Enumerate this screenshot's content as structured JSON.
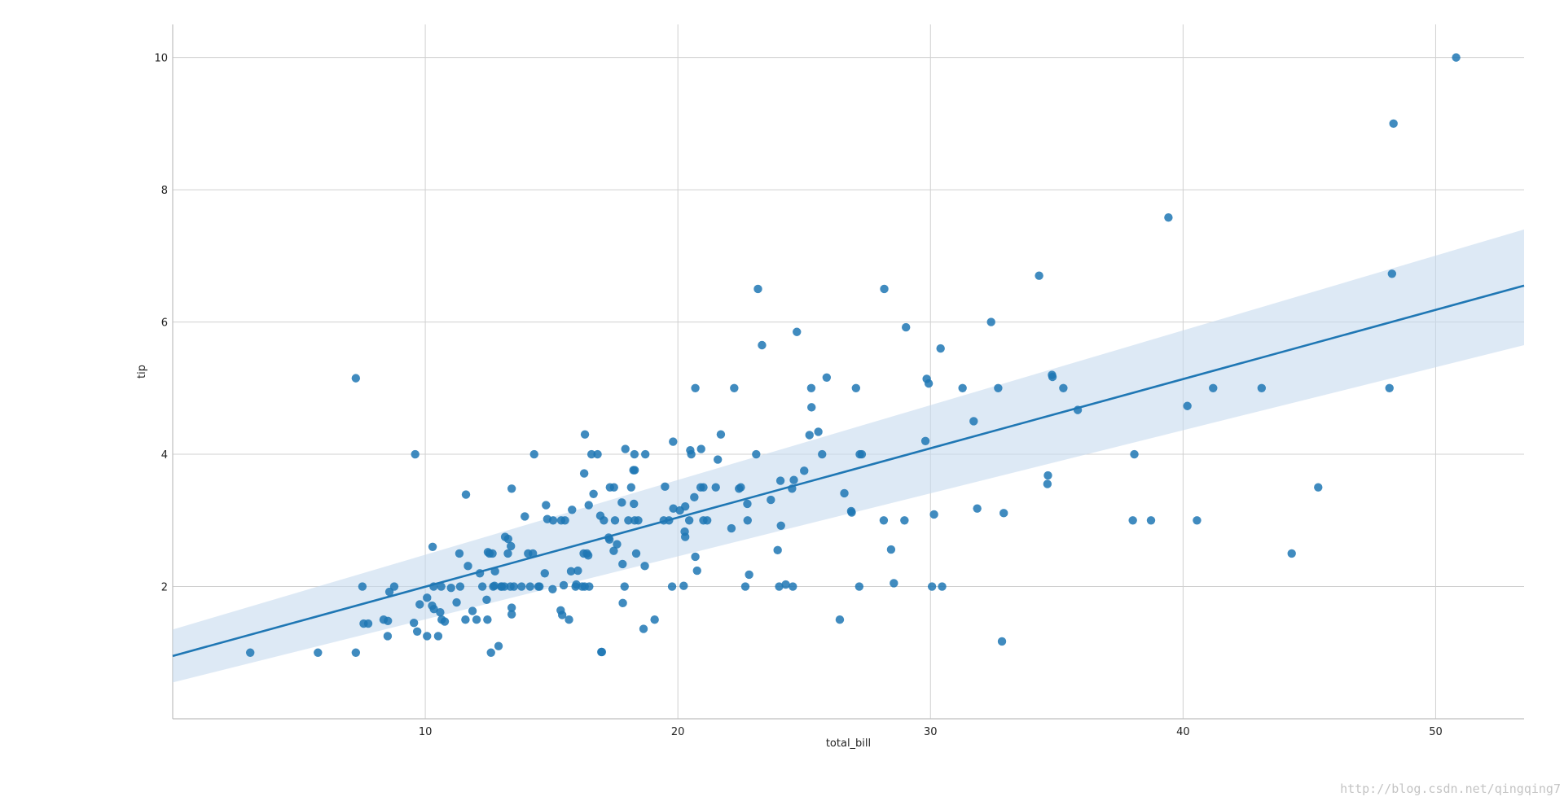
{
  "chart_data": {
    "type": "scatter",
    "xlabel": "total_bill",
    "ylabel": "tip",
    "xlim": [
      0,
      53.5
    ],
    "ylim": [
      0,
      10.5
    ],
    "xticks": [
      10,
      20,
      30,
      40,
      50
    ],
    "yticks": [
      2,
      4,
      6,
      8,
      10
    ],
    "grid": true,
    "colors": {
      "points": "#1f77b4",
      "line": "#1f77b4",
      "ci_band": "#c6dbef",
      "grid": "#d0d0d0",
      "spine": "#bfbfbf"
    },
    "regression": {
      "x": [
        0,
        53.5
      ],
      "y": [
        0.95,
        6.55
      ],
      "ci_lower": [
        0.55,
        5.65
      ],
      "ci_upper": [
        1.35,
        7.4
      ]
    },
    "points": [
      [
        3.07,
        1.0
      ],
      [
        5.75,
        1.0
      ],
      [
        7.25,
        1.0
      ],
      [
        7.25,
        5.15
      ],
      [
        7.51,
        2.0
      ],
      [
        7.56,
        1.44
      ],
      [
        7.74,
        1.44
      ],
      [
        8.35,
        1.5
      ],
      [
        8.52,
        1.48
      ],
      [
        8.51,
        1.25
      ],
      [
        8.58,
        1.92
      ],
      [
        8.77,
        2.0
      ],
      [
        9.55,
        1.45
      ],
      [
        9.6,
        4.0
      ],
      [
        9.68,
        1.32
      ],
      [
        9.78,
        1.73
      ],
      [
        10.07,
        1.83
      ],
      [
        10.07,
        1.25
      ],
      [
        10.27,
        1.71
      ],
      [
        10.29,
        2.6
      ],
      [
        10.33,
        2.0
      ],
      [
        10.34,
        1.66
      ],
      [
        10.51,
        1.25
      ],
      [
        10.59,
        1.61
      ],
      [
        10.63,
        2.0
      ],
      [
        10.65,
        1.5
      ],
      [
        10.77,
        1.47
      ],
      [
        11.02,
        1.98
      ],
      [
        11.24,
        1.76
      ],
      [
        11.35,
        2.5
      ],
      [
        11.38,
        2.0
      ],
      [
        11.59,
        1.5
      ],
      [
        11.61,
        3.39
      ],
      [
        11.69,
        2.31
      ],
      [
        11.87,
        1.63
      ],
      [
        12.03,
        1.5
      ],
      [
        12.16,
        2.2
      ],
      [
        12.26,
        2.0
      ],
      [
        12.43,
        1.8
      ],
      [
        12.46,
        1.5
      ],
      [
        12.48,
        2.52
      ],
      [
        12.54,
        2.5
      ],
      [
        12.6,
        1.0
      ],
      [
        12.66,
        2.5
      ],
      [
        12.69,
        2.0
      ],
      [
        12.74,
        2.01
      ],
      [
        12.76,
        2.23
      ],
      [
        12.9,
        1.1
      ],
      [
        13.0,
        2.0
      ],
      [
        13.03,
        2.0
      ],
      [
        13.13,
        2.0
      ],
      [
        13.16,
        2.75
      ],
      [
        13.27,
        2.5
      ],
      [
        13.28,
        2.72
      ],
      [
        13.37,
        2.0
      ],
      [
        13.39,
        2.61
      ],
      [
        13.42,
        1.68
      ],
      [
        13.42,
        3.48
      ],
      [
        13.42,
        1.58
      ],
      [
        13.51,
        2.0
      ],
      [
        13.81,
        2.0
      ],
      [
        13.94,
        3.06
      ],
      [
        14.07,
        2.5
      ],
      [
        14.15,
        2.0
      ],
      [
        14.26,
        2.5
      ],
      [
        14.31,
        4.0
      ],
      [
        14.48,
        2.0
      ],
      [
        14.52,
        2.0
      ],
      [
        14.73,
        2.2
      ],
      [
        14.78,
        3.23
      ],
      [
        14.83,
        3.02
      ],
      [
        15.04,
        1.96
      ],
      [
        15.06,
        3.0
      ],
      [
        15.36,
        1.64
      ],
      [
        15.38,
        3.0
      ],
      [
        15.42,
        1.57
      ],
      [
        15.48,
        2.02
      ],
      [
        15.53,
        3.0
      ],
      [
        15.69,
        1.5
      ],
      [
        15.77,
        2.23
      ],
      [
        15.81,
        3.16
      ],
      [
        15.95,
        2.0
      ],
      [
        15.98,
        2.03
      ],
      [
        16.04,
        2.24
      ],
      [
        16.21,
        2.0
      ],
      [
        16.27,
        2.5
      ],
      [
        16.29,
        3.71
      ],
      [
        16.31,
        2.0
      ],
      [
        16.32,
        4.3
      ],
      [
        16.4,
        2.5
      ],
      [
        16.45,
        2.47
      ],
      [
        16.47,
        3.23
      ],
      [
        16.49,
        2.0
      ],
      [
        16.58,
        4.0
      ],
      [
        16.66,
        3.4
      ],
      [
        16.82,
        4.0
      ],
      [
        16.93,
        3.07
      ],
      [
        16.97,
        1.01
      ],
      [
        16.99,
        1.01
      ],
      [
        17.07,
        3.0
      ],
      [
        17.26,
        2.74
      ],
      [
        17.29,
        2.71
      ],
      [
        17.31,
        3.5
      ],
      [
        17.46,
        2.54
      ],
      [
        17.47,
        3.5
      ],
      [
        17.51,
        3.0
      ],
      [
        17.59,
        2.64
      ],
      [
        17.78,
        3.27
      ],
      [
        17.81,
        2.34
      ],
      [
        17.82,
        1.75
      ],
      [
        17.89,
        2.0
      ],
      [
        17.92,
        4.08
      ],
      [
        18.04,
        3.0
      ],
      [
        18.15,
        3.5
      ],
      [
        18.24,
        3.76
      ],
      [
        18.26,
        3.25
      ],
      [
        18.28,
        4.0
      ],
      [
        18.29,
        3.76
      ],
      [
        18.29,
        3.0
      ],
      [
        18.35,
        2.5
      ],
      [
        18.43,
        3.0
      ],
      [
        18.64,
        1.36
      ],
      [
        18.69,
        2.31
      ],
      [
        18.71,
        4.0
      ],
      [
        19.08,
        1.5
      ],
      [
        19.44,
        3.0
      ],
      [
        19.49,
        3.51
      ],
      [
        19.65,
        3.0
      ],
      [
        19.77,
        2.0
      ],
      [
        19.81,
        4.19
      ],
      [
        19.82,
        3.18
      ],
      [
        20.08,
        3.15
      ],
      [
        20.23,
        2.01
      ],
      [
        20.27,
        2.83
      ],
      [
        20.29,
        3.21
      ],
      [
        20.29,
        2.75
      ],
      [
        20.45,
        3.0
      ],
      [
        20.49,
        4.06
      ],
      [
        20.53,
        4.0
      ],
      [
        20.65,
        3.35
      ],
      [
        20.69,
        2.45
      ],
      [
        20.69,
        5.0
      ],
      [
        20.76,
        2.24
      ],
      [
        20.9,
        3.5
      ],
      [
        20.92,
        4.08
      ],
      [
        21.01,
        3.5
      ],
      [
        21.01,
        3.0
      ],
      [
        21.16,
        3.0
      ],
      [
        21.5,
        3.5
      ],
      [
        21.58,
        3.92
      ],
      [
        21.7,
        4.3
      ],
      [
        22.12,
        2.88
      ],
      [
        22.23,
        5.0
      ],
      [
        22.42,
        3.48
      ],
      [
        22.49,
        3.5
      ],
      [
        22.67,
        2.0
      ],
      [
        22.75,
        3.25
      ],
      [
        22.76,
        3.0
      ],
      [
        22.82,
        2.18
      ],
      [
        23.1,
        4.0
      ],
      [
        23.17,
        6.5
      ],
      [
        23.33,
        5.65
      ],
      [
        23.68,
        3.31
      ],
      [
        23.95,
        2.55
      ],
      [
        24.01,
        2.0
      ],
      [
        24.06,
        3.6
      ],
      [
        24.08,
        2.92
      ],
      [
        24.27,
        2.03
      ],
      [
        24.52,
        3.48
      ],
      [
        24.55,
        2.0
      ],
      [
        24.59,
        3.61
      ],
      [
        24.71,
        5.85
      ],
      [
        25.0,
        3.75
      ],
      [
        25.21,
        4.29
      ],
      [
        25.28,
        5.0
      ],
      [
        25.29,
        4.71
      ],
      [
        25.56,
        4.34
      ],
      [
        25.71,
        4.0
      ],
      [
        25.89,
        5.16
      ],
      [
        26.41,
        1.5
      ],
      [
        26.59,
        3.41
      ],
      [
        26.86,
        3.14
      ],
      [
        26.88,
        3.12
      ],
      [
        27.05,
        5.0
      ],
      [
        27.18,
        2.0
      ],
      [
        27.2,
        4.0
      ],
      [
        27.28,
        4.0
      ],
      [
        28.15,
        3.0
      ],
      [
        28.17,
        6.5
      ],
      [
        28.44,
        2.56
      ],
      [
        28.55,
        2.05
      ],
      [
        28.97,
        3.0
      ],
      [
        29.03,
        5.92
      ],
      [
        29.8,
        4.2
      ],
      [
        29.85,
        5.14
      ],
      [
        29.93,
        5.07
      ],
      [
        30.06,
        2.0
      ],
      [
        30.14,
        3.09
      ],
      [
        30.4,
        5.6
      ],
      [
        30.46,
        2.0
      ],
      [
        31.27,
        5.0
      ],
      [
        31.71,
        4.5
      ],
      [
        31.85,
        3.18
      ],
      [
        32.4,
        6.0
      ],
      [
        32.68,
        5.0
      ],
      [
        32.83,
        1.17
      ],
      [
        32.9,
        3.11
      ],
      [
        34.3,
        6.7
      ],
      [
        34.63,
        3.55
      ],
      [
        34.65,
        3.68
      ],
      [
        34.81,
        5.2
      ],
      [
        34.83,
        5.17
      ],
      [
        35.26,
        5.0
      ],
      [
        35.83,
        4.67
      ],
      [
        38.01,
        3.0
      ],
      [
        38.07,
        4.0
      ],
      [
        38.73,
        3.0
      ],
      [
        39.42,
        7.58
      ],
      [
        40.17,
        4.73
      ],
      [
        40.55,
        3.0
      ],
      [
        41.19,
        5.0
      ],
      [
        43.11,
        5.0
      ],
      [
        44.3,
        2.5
      ],
      [
        45.35,
        3.5
      ],
      [
        48.17,
        5.0
      ],
      [
        48.27,
        6.73
      ],
      [
        48.33,
        9.0
      ],
      [
        50.81,
        10.0
      ]
    ]
  },
  "watermark": "http://blog.csdn.net/qingqing7"
}
